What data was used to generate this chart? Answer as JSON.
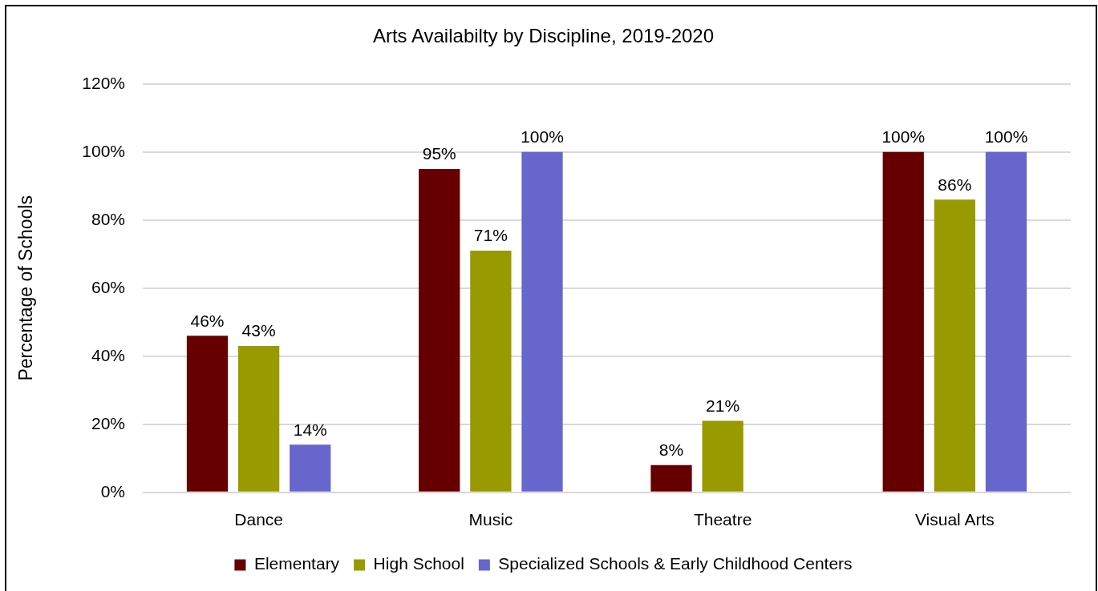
{
  "chart_data": {
    "type": "bar",
    "title": "Arts Availabilty by Discipline, 2019-2020",
    "ylabel": "Percentage of Schools",
    "categories": [
      "Dance",
      "Music",
      "Theatre",
      "Visual Arts"
    ],
    "series": [
      {
        "name": "Elementary",
        "color": "#660000",
        "values": [
          46,
          95,
          8,
          100
        ],
        "value_labels": [
          "46%",
          "95%",
          "8%",
          "100%"
        ]
      },
      {
        "name": "High School",
        "color": "#999900",
        "values": [
          43,
          71,
          21,
          86
        ],
        "value_labels": [
          "43%",
          "71%",
          "21%",
          "86%"
        ]
      },
      {
        "name": "Specialized Schools & Early Childhood Centers",
        "color": "#6666cc",
        "values": [
          14,
          100,
          null,
          100
        ],
        "value_labels": [
          "14%",
          "100%",
          null,
          "100%"
        ]
      }
    ],
    "ylim": [
      0,
      120
    ],
    "yticks": [
      {
        "value": 0,
        "label": "0%"
      },
      {
        "value": 20,
        "label": "20%"
      },
      {
        "value": 40,
        "label": "40%"
      },
      {
        "value": 60,
        "label": "60%"
      },
      {
        "value": 80,
        "label": "80%"
      },
      {
        "value": 100,
        "label": "100%"
      },
      {
        "value": 120,
        "label": "120%"
      }
    ],
    "grid": "y",
    "legend": "bottom"
  }
}
